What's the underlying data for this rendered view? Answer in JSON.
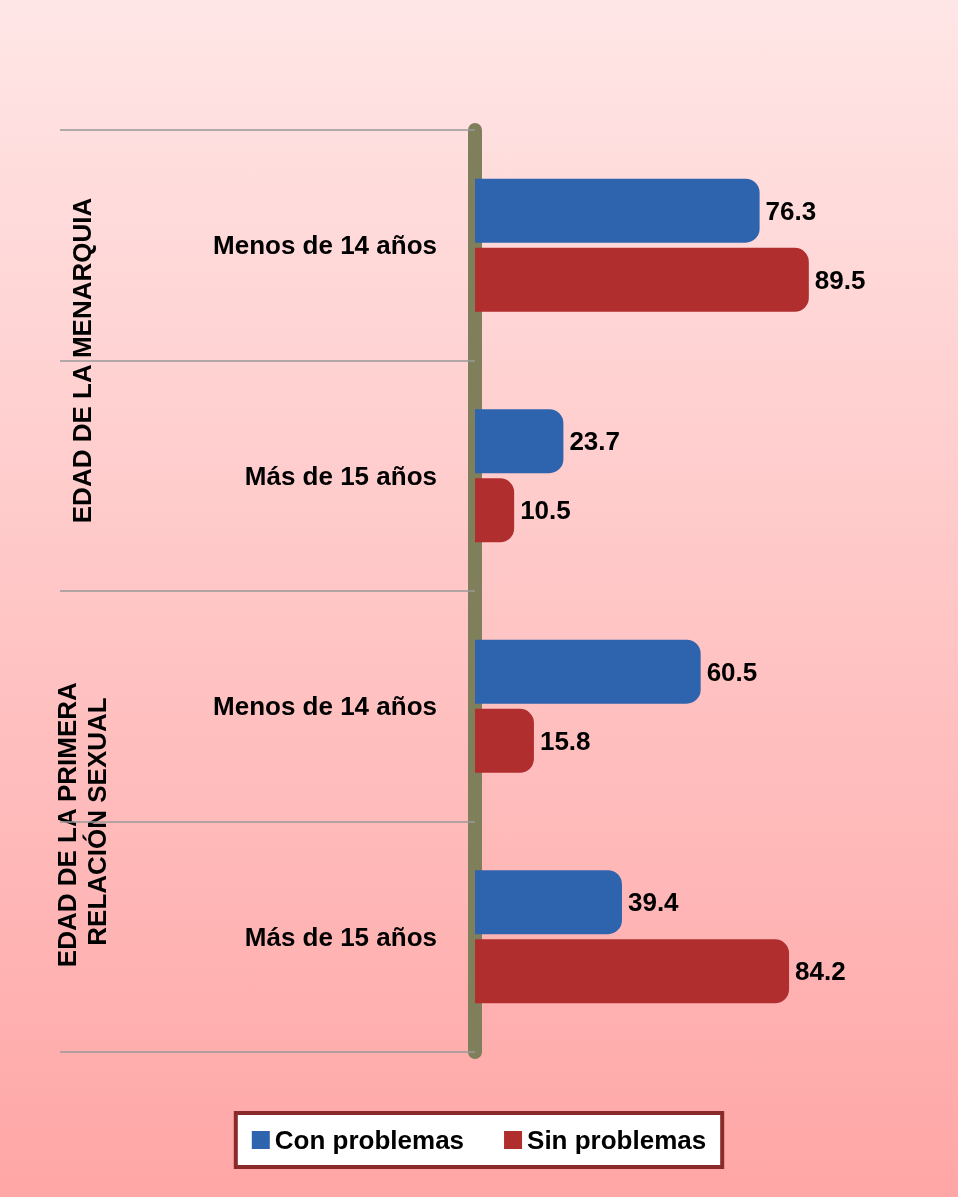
{
  "chart_data": {
    "type": "bar",
    "orientation": "horizontal",
    "categories": [
      "Menos de 14 años",
      "Más de 15 años",
      "Menos de 14 años",
      "Más de 15 años"
    ],
    "series": [
      {
        "name": "Con problemas",
        "color": "#2e63ad",
        "values": [
          76.3,
          23.7,
          60.5,
          39.4
        ]
      },
      {
        "name": "Sin problemas",
        "color": "#b02e2e",
        "values": [
          89.5,
          10.5,
          15.8,
          84.2
        ]
      }
    ],
    "annotations": [
      "EDAD DE LA MENARQUIA",
      "EDAD DE LA PRIMERA RELACIÓN SEXUAL"
    ],
    "data_labels": true,
    "legend": "bottom",
    "grid": false
  }
}
